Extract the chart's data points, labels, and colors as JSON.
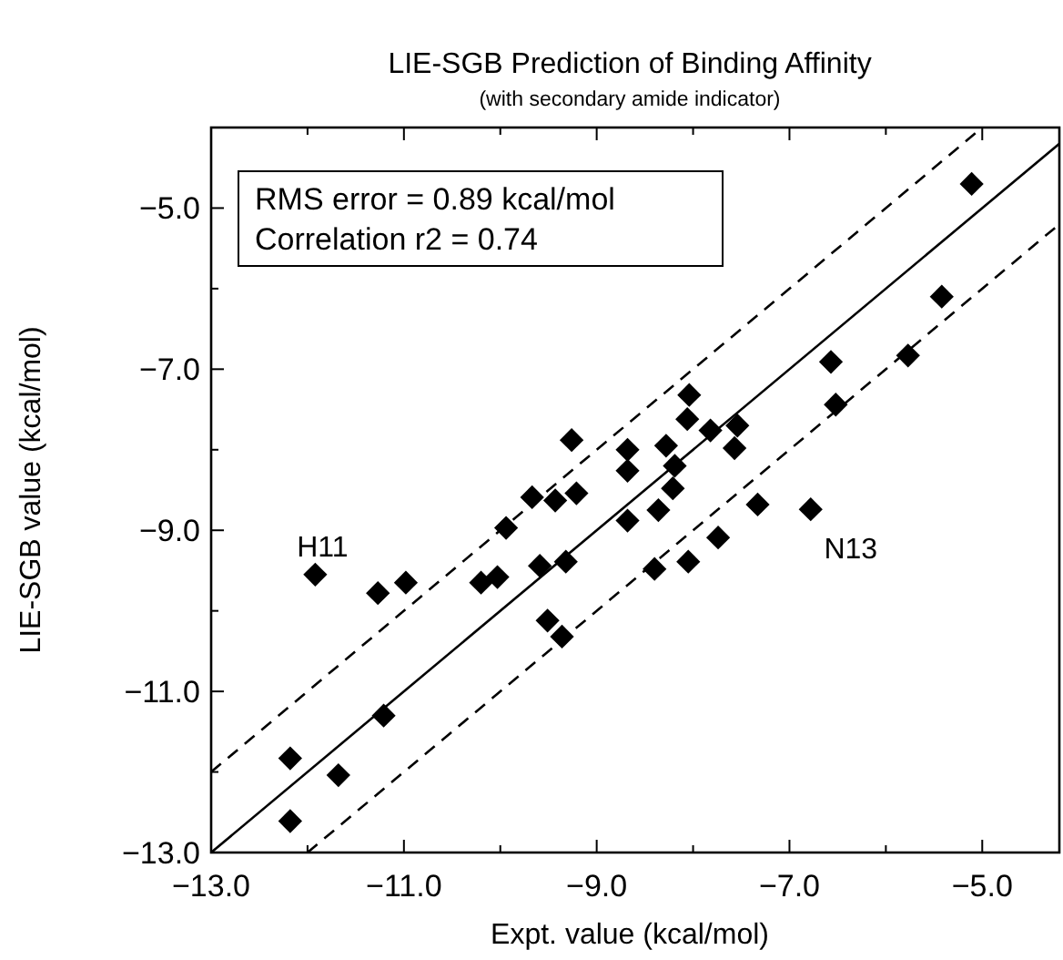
{
  "chart_data": {
    "type": "scatter",
    "title": "LIE-SGB Prediction of Binding Affinity",
    "subtitle": "(with secondary amide indicator)",
    "xlabel": "Expt. value (kcal/mol)",
    "ylabel": "LIE-SGB value (kcal/mol)",
    "xlim": [
      -13,
      -4.2
    ],
    "ylim": [
      -13,
      -4
    ],
    "xticks": [
      {
        "value": -13,
        "label": "−13.0"
      },
      {
        "value": -12,
        "label": null
      },
      {
        "value": -11,
        "label": "−11.0"
      },
      {
        "value": -10,
        "label": null
      },
      {
        "value": -9,
        "label": "−9.0"
      },
      {
        "value": -8,
        "label": null
      },
      {
        "value": -7,
        "label": "−7.0"
      },
      {
        "value": -6,
        "label": null
      },
      {
        "value": -5,
        "label": "−5.0"
      }
    ],
    "yticks": [
      {
        "value": -13,
        "label": "−13.0"
      },
      {
        "value": -12,
        "label": null
      },
      {
        "value": -11,
        "label": "−11.0"
      },
      {
        "value": -10,
        "label": null
      },
      {
        "value": -9,
        "label": "−9.0"
      },
      {
        "value": -8,
        "label": null
      },
      {
        "value": -7,
        "label": "−7.0"
      },
      {
        "value": -6,
        "label": null
      },
      {
        "value": -5,
        "label": "−5.0"
      }
    ],
    "grid": false,
    "marker": "diamond",
    "series": [
      {
        "color": "#000000",
        "x": [
          -9.26,
          -8.68,
          -8.68,
          -9.67,
          -9.43,
          -9.21,
          -8.68,
          -9.94,
          -5.11,
          -5.42,
          -5.77,
          -6.57,
          -6.52,
          -8.04,
          -8.06,
          -7.82,
          -7.54,
          -7.57,
          -8.28,
          -8.19,
          -8.21,
          -8.36,
          -7.33,
          -6.78,
          -7.74,
          -8.05,
          -8.4,
          -11.92,
          -11.27,
          -10.98,
          -10.2,
          -10.03,
          -9.59,
          -9.32,
          -9.51,
          -9.36,
          -11.21,
          -12.18,
          -11.68,
          -12.18
        ],
        "values": [
          -7.88,
          -8.0,
          -8.26,
          -8.59,
          -8.63,
          -8.54,
          -8.88,
          -8.97,
          -4.7,
          -6.1,
          -6.83,
          -6.91,
          -7.44,
          -7.32,
          -7.62,
          -7.76,
          -7.7,
          -7.98,
          -7.95,
          -8.2,
          -8.48,
          -8.75,
          -8.68,
          -8.74,
          -9.09,
          -9.39,
          -9.48,
          -9.55,
          -9.78,
          -9.65,
          -9.65,
          -9.58,
          -9.44,
          -9.39,
          -10.12,
          -10.32,
          -11.3,
          -11.83,
          -12.04,
          -12.61
        ]
      },
      {
        "type": "line",
        "color": "#000000",
        "line_style": "solid",
        "marker": "none",
        "x": [
          -13,
          -4.2
        ],
        "values": [
          -13,
          -4.2
        ]
      },
      {
        "type": "line",
        "color": "#000000",
        "line_style": "dashed",
        "marker": "none",
        "x": [
          -13,
          -5
        ],
        "values": [
          -12,
          -4
        ]
      },
      {
        "type": "line",
        "color": "#000000",
        "line_style": "dashed",
        "marker": "none",
        "x": [
          -12,
          -4.2
        ],
        "values": [
          -13,
          -5.2
        ]
      }
    ],
    "annotations": [
      "RMS error = 0.89 kcal/mol",
      "Correlation r2 = 0.74",
      {
        "text": "H11",
        "x": -11.92,
        "y": -9.55
      },
      {
        "text": "N13",
        "x": -6.78,
        "y": -8.74
      }
    ]
  }
}
